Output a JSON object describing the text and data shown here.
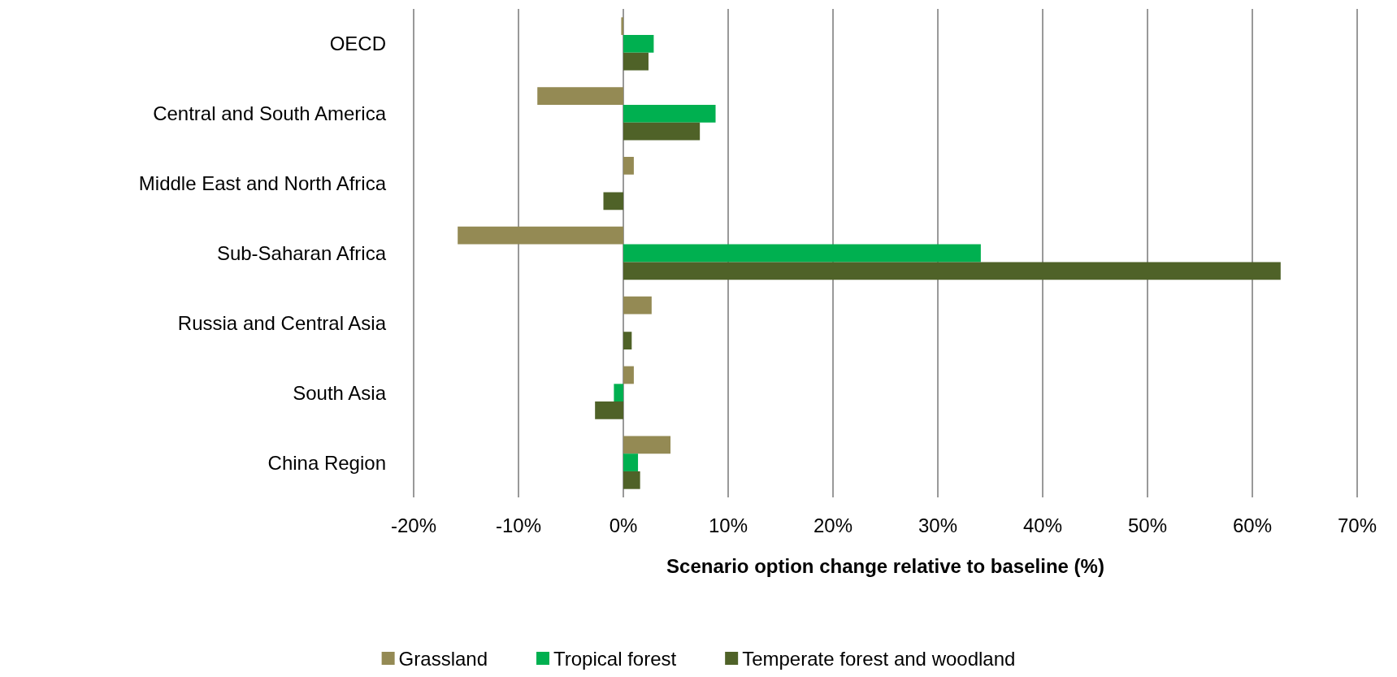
{
  "chart_data": {
    "type": "bar",
    "orientation": "horizontal",
    "xlabel": "Scenario option change relative to baseline (%)",
    "categories": [
      "OECD",
      "Central and South America",
      "Middle East and North Africa",
      "Sub-Saharan Africa",
      "Russia and Central Asia",
      "South Asia",
      "China Region"
    ],
    "series": [
      {
        "name": "Grassland",
        "color": "#948a54",
        "values": [
          -0.2,
          -8.2,
          1.0,
          -15.8,
          2.7,
          1.0,
          4.5
        ]
      },
      {
        "name": "Tropical forest",
        "color": "#00b050",
        "values": [
          2.9,
          8.8,
          null,
          34.1,
          null,
          -0.9,
          1.4
        ]
      },
      {
        "name": "Temperate forest and woodland",
        "color": "#4f6228",
        "values": [
          2.4,
          7.3,
          -1.9,
          62.7,
          0.8,
          -2.7,
          1.6
        ]
      }
    ],
    "xlim": [
      -20,
      70
    ],
    "xticks": [
      {
        "value": -20,
        "label": "-20%"
      },
      {
        "value": -10,
        "label": "-10%"
      },
      {
        "value": 0,
        "label": "0%"
      },
      {
        "value": 10,
        "label": "10%"
      },
      {
        "value": 20,
        "label": "20%"
      },
      {
        "value": 30,
        "label": "30%"
      },
      {
        "value": 40,
        "label": "40%"
      },
      {
        "value": 50,
        "label": "50%"
      },
      {
        "value": 60,
        "label": "60%"
      },
      {
        "value": 70,
        "label": "70%"
      }
    ],
    "grid": "x",
    "legend": "bottom"
  }
}
